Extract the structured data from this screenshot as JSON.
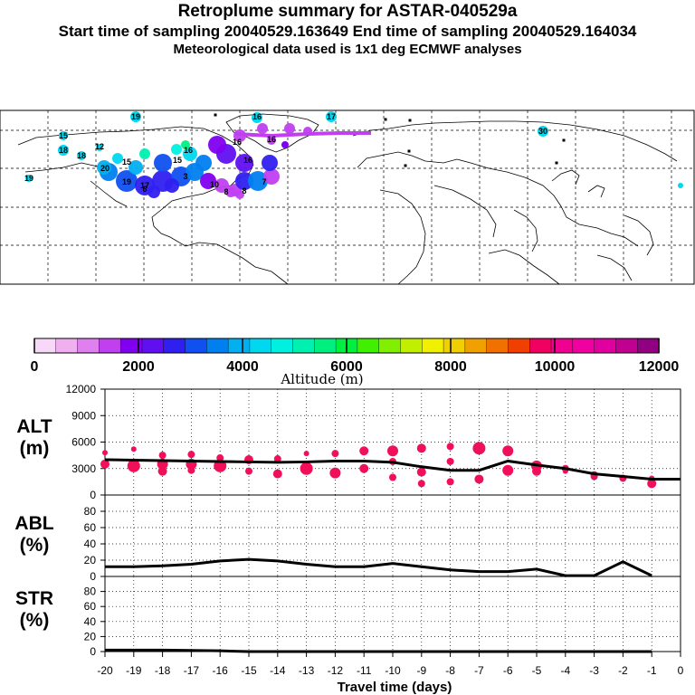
{
  "header": {
    "title": "Retroplume summary for ASTAR-040529a",
    "line2": "Start time of sampling 20040529.163649     End time of sampling 20040529.164034",
    "line3": "Meteorological data used is 1x1 deg ECMWF analyses"
  },
  "colorbar": {
    "label": "Altitude (m)",
    "ticks": [
      "0",
      "2000",
      "4000",
      "6000",
      "8000",
      "10000",
      "12000"
    ],
    "colors": [
      "#f8d8f8",
      "#f0b0f0",
      "#e080f0",
      "#c040f0",
      "#8000f0",
      "#6010f0",
      "#3020f0",
      "#1050f0",
      "#0080f0",
      "#00b0f0",
      "#00d8f0",
      "#00f0e0",
      "#00f0b0",
      "#00f080",
      "#00f040",
      "#40f000",
      "#80f000",
      "#c0f000",
      "#f0f000",
      "#f0d000",
      "#f0a000",
      "#f07000",
      "#f04000",
      "#f00060",
      "#f00090",
      "#f000a0",
      "#e000a0",
      "#c00090",
      "#900080"
    ]
  },
  "map": {
    "labels": [
      "19",
      "16",
      "17",
      "16",
      "15",
      "18",
      "18",
      "16",
      "12",
      "20",
      "15",
      "19",
      "17",
      "16",
      "15",
      "16",
      "8",
      "7",
      "8",
      "10",
      "6",
      "3",
      "30",
      "19"
    ]
  },
  "chart_data": [
    {
      "type": "scatter",
      "panel": "ALT",
      "ylabel": "ALT (m)",
      "ylim": [
        0,
        12000
      ],
      "yticks": [
        "0",
        "3000",
        "6000",
        "9000",
        "12000"
      ],
      "xlim": [
        -20,
        0
      ],
      "line": {
        "x": [
          -20,
          -19,
          -18,
          -17,
          -16,
          -15,
          -14,
          -13,
          -12,
          -11,
          -10,
          -9,
          -8,
          -7,
          -6,
          -5,
          -4,
          -3,
          -2,
          -1,
          0
        ],
        "y": [
          4000,
          3950,
          3900,
          3850,
          3800,
          3750,
          3700,
          3750,
          3850,
          3850,
          3700,
          3200,
          2800,
          2800,
          3850,
          3400,
          3000,
          2400,
          2100,
          1800,
          1800
        ]
      },
      "points": {
        "x": [
          -20,
          -20,
          -19,
          -19,
          -18,
          -18,
          -18,
          -17,
          -17,
          -17,
          -16,
          -16,
          -15,
          -15,
          -14,
          -14,
          -13,
          -13,
          -12,
          -12,
          -11,
          -11,
          -10,
          -10,
          -10,
          -9,
          -9,
          -9,
          -8,
          -8,
          -8,
          -7,
          -7,
          -6,
          -6,
          -5,
          -5,
          -4,
          -4,
          -3,
          -3,
          -2,
          -1,
          -1
        ],
        "y": [
          4800,
          3500,
          5200,
          3300,
          4500,
          3500,
          2700,
          4600,
          3500,
          2800,
          4200,
          3300,
          4000,
          2700,
          4100,
          2400,
          4700,
          3000,
          4700,
          2500,
          5000,
          3000,
          5000,
          3800,
          2000,
          5300,
          2600,
          1300,
          5500,
          3800,
          1500,
          5300,
          1800,
          5000,
          2800,
          3300,
          2700,
          3000,
          2700,
          2300,
          2100,
          1900,
          1900,
          1300
        ],
        "r": [
          3,
          5,
          3,
          7,
          4,
          6,
          5,
          4,
          6,
          4,
          4,
          7,
          5,
          4,
          4,
          5,
          3,
          7,
          4,
          6,
          5,
          5,
          6,
          4,
          4,
          5,
          5,
          4,
          4,
          4,
          4,
          7,
          5,
          6,
          6,
          6,
          5,
          4,
          3,
          4,
          4,
          4,
          3,
          5
        ]
      }
    },
    {
      "type": "line",
      "panel": "ABL",
      "ylabel": "ABL (%)",
      "ylim": [
        0,
        100
      ],
      "yticks": [
        "0",
        "20",
        "40",
        "60",
        "80"
      ],
      "x": [
        -20,
        -19,
        -18,
        -17,
        -16,
        -15,
        -14,
        -13,
        -12,
        -11,
        -10,
        -9,
        -8,
        -7,
        -6,
        -5,
        -4,
        -3,
        -2,
        -1
      ],
      "y": [
        12,
        12,
        13,
        15,
        19,
        21,
        19,
        15,
        12,
        12,
        16,
        12,
        8,
        6,
        6,
        9,
        1,
        1,
        18,
        1
      ]
    },
    {
      "type": "line",
      "panel": "STR",
      "ylabel": "STR (%)",
      "ylim": [
        0,
        100
      ],
      "yticks": [
        "0",
        "20",
        "40",
        "60",
        "80"
      ],
      "x": [
        -20,
        -19,
        -18,
        -17,
        -16,
        -15,
        -14,
        -13,
        -12,
        -11,
        -10,
        -9,
        -8,
        -7,
        -6,
        -5,
        -4,
        -3,
        -2,
        -1
      ],
      "y": [
        2,
        2,
        2,
        1.5,
        1,
        0,
        0,
        0,
        0,
        0,
        0,
        0,
        0,
        0,
        0,
        0,
        0,
        0,
        0,
        0
      ]
    }
  ],
  "xaxis": {
    "label": "Travel time (days)",
    "ticks": [
      "-20",
      "-19",
      "-18",
      "-17",
      "-16",
      "-15",
      "-14",
      "-13",
      "-12",
      "-11",
      "-10",
      "-9",
      "-8",
      "-7",
      "-6",
      "-5",
      "-4",
      "-3",
      "-2",
      "-1",
      "0"
    ]
  }
}
